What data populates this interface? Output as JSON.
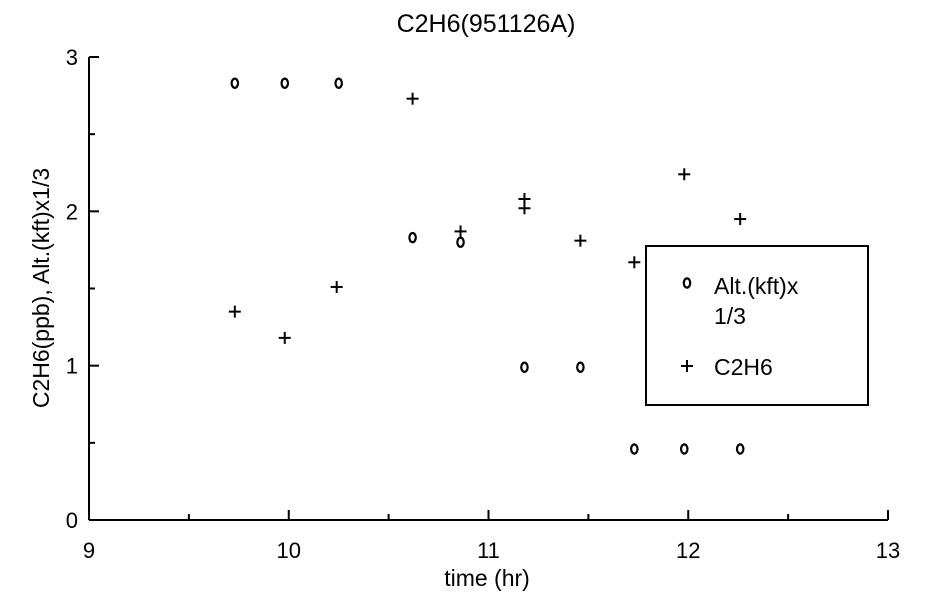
{
  "chart_data": {
    "type": "scatter",
    "title": "C2H6(951126A)",
    "xlabel": "time (hr)",
    "ylabel": "C2H6(ppb), Alt.(kft)x1/3",
    "xlim": [
      9,
      13
    ],
    "ylim": [
      0,
      3
    ],
    "x_ticks": [
      "9",
      "10",
      "11",
      "12",
      "13"
    ],
    "y_ticks": [
      "0",
      "1",
      "2",
      "3"
    ],
    "series": [
      {
        "name": "Alt.(kft)x 1/3",
        "marker": "o",
        "points": [
          [
            9.73,
            2.83
          ],
          [
            9.98,
            2.83
          ],
          [
            10.25,
            2.83
          ],
          [
            10.62,
            1.83
          ],
          [
            10.86,
            1.8
          ],
          [
            11.18,
            0.99
          ],
          [
            11.46,
            0.99
          ],
          [
            11.73,
            0.46
          ],
          [
            11.98,
            0.46
          ],
          [
            12.26,
            0.46
          ]
        ]
      },
      {
        "name": "C2H6",
        "marker": "+",
        "points": [
          [
            9.73,
            1.35
          ],
          [
            9.98,
            1.18
          ],
          [
            10.24,
            1.51
          ],
          [
            10.62,
            2.73
          ],
          [
            10.86,
            1.87
          ],
          [
            11.18,
            2.08
          ],
          [
            11.18,
            2.02
          ],
          [
            11.46,
            1.81
          ],
          [
            11.73,
            1.67
          ],
          [
            11.98,
            2.24
          ],
          [
            12.26,
            1.95
          ]
        ]
      }
    ],
    "legend": {
      "position": "right",
      "items": [
        {
          "symbol": "o",
          "label_line1": "Alt.(kft)x",
          "label_line2": "1/3"
        },
        {
          "symbol": "+",
          "label_line1": "C2H6"
        }
      ]
    },
    "grid": false
  }
}
